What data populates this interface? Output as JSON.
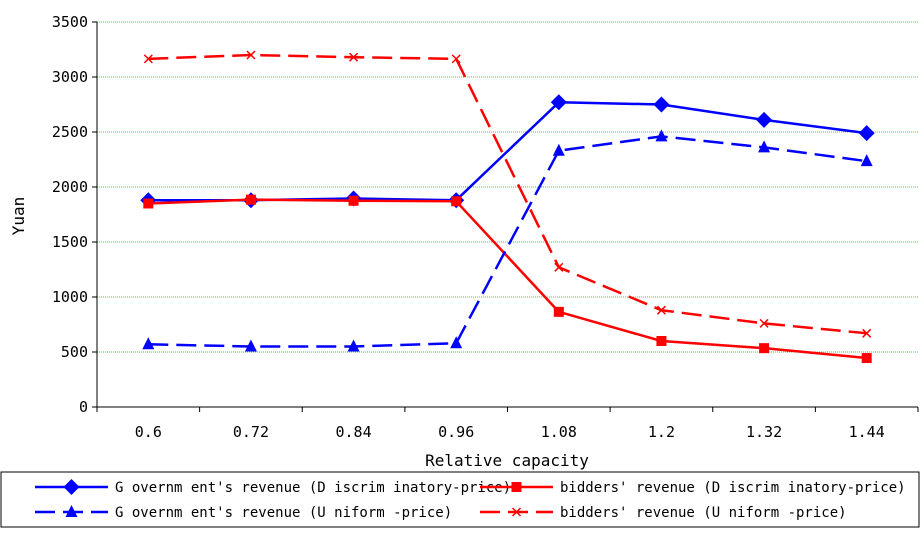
{
  "chart_data": {
    "type": "line",
    "title": "",
    "xlabel": "Relative capacity",
    "ylabel": "Yuan",
    "categories": [
      "0.6",
      "0.72",
      "0.84",
      "0.96",
      "1.08",
      "1.2",
      "1.32",
      "1.44"
    ],
    "y_ticks": [
      "0",
      "500",
      "1000",
      "1500",
      "2000",
      "2500",
      "3000",
      "3500"
    ],
    "ylim": [
      0,
      3500
    ],
    "grid": "horizontal",
    "legend_position": "bottom",
    "series": [
      {
        "name": "G overnm ent's revenue (D iscrim inatory-price)",
        "values": [
          1880,
          1880,
          1895,
          1880,
          2770,
          2750,
          2610,
          2490
        ],
        "color": "#0000ff",
        "line_style": "solid",
        "marker": "diamond"
      },
      {
        "name": "bidders' revenue (D iscrim inatory-price)",
        "values": [
          1850,
          1885,
          1875,
          1870,
          865,
          600,
          535,
          445
        ],
        "color": "#ff0000",
        "line_style": "solid",
        "marker": "square"
      },
      {
        "name": "G overnm ent's revenue (U niform -price)",
        "values": [
          570,
          550,
          550,
          580,
          2330,
          2460,
          2360,
          2235
        ],
        "color": "#0000ff",
        "line_style": "dashed",
        "marker": "triangle"
      },
      {
        "name": "bidders' revenue (U niform -price)",
        "values": [
          3165,
          3200,
          3180,
          3165,
          1270,
          880,
          760,
          670
        ],
        "color": "#ff0000",
        "line_style": "dashed",
        "marker": "x"
      }
    ]
  }
}
